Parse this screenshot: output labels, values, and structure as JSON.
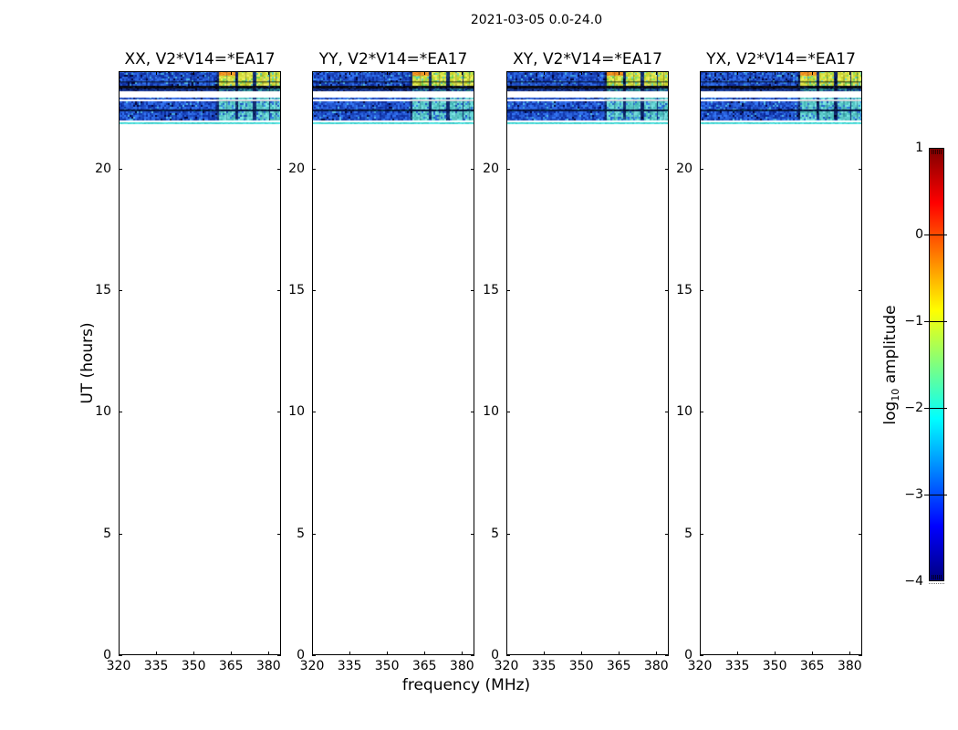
{
  "chart_data": {
    "type": "heatmap",
    "title": "2021-03-05 0.0-24.0",
    "xlabel": "frequency (MHz)",
    "ylabel": "UT (hours)",
    "xlim": [
      320,
      385
    ],
    "ylim": [
      0,
      24
    ],
    "xticks": [
      "320",
      "335",
      "350",
      "365",
      "380"
    ],
    "xtick_values": [
      320,
      335,
      350,
      365,
      380
    ],
    "yticks": [
      "0",
      "5",
      "10",
      "15",
      "20"
    ],
    "ytick_values": [
      0,
      5,
      10,
      15,
      20
    ],
    "panels": [
      {
        "label": "XX, V2*V14=*EA17",
        "seed": 11
      },
      {
        "label": "YY, V2*V14=*EA17",
        "seed": 23
      },
      {
        "label": "XY, V2*V14=*EA17",
        "seed": 37
      },
      {
        "label": "YX, V2*V14=*EA17",
        "seed": 53
      }
    ],
    "colorbar": {
      "label": "log10 amplitude",
      "label_prefix": "log",
      "label_sub": "10",
      "label_suffix": " amplitude",
      "vmin": -4,
      "vmax": 1,
      "tick_values": [
        1,
        0,
        -1,
        -2,
        -3,
        -4
      ],
      "tick_labels": [
        "1",
        "0",
        "−1",
        "−2",
        "−3",
        "−4"
      ],
      "colormap": "jet",
      "colormap_colors": [
        "#7f0000",
        "#ff0000",
        "#ff7f00",
        "#ffff00",
        "#7fff7f",
        "#00ffff",
        "#007fff",
        "#0000ff",
        "#00007f"
      ]
    },
    "rfi_blocks_mhz": [
      [
        360.0,
        366.3
      ],
      [
        368.0,
        373.6
      ],
      [
        375.0,
        380.0
      ],
      [
        380.8,
        384.8
      ]
    ],
    "bands": [
      {
        "name": "scan-top-main",
        "ut_lo": 23.4,
        "ut_hi": 24.0,
        "kind": "blue",
        "blocks": "yellow",
        "first_block_orange": true,
        "hline": true
      },
      {
        "name": "flagged-black",
        "ut_lo": 23.29,
        "ut_hi": 23.4,
        "kind": "black",
        "blocks": "none"
      },
      {
        "name": "dim-row",
        "ut_lo": 23.18,
        "ut_hi": 23.29,
        "kind": "dim",
        "blocks": "faint"
      },
      {
        "name": "thin-row",
        "ut_lo": 22.84,
        "ut_hi": 22.91,
        "kind": "blue",
        "blocks": "cyan"
      },
      {
        "name": "mid-row-a",
        "ut_lo": 22.41,
        "ut_hi": 22.78,
        "kind": "blue",
        "blocks": "cyan"
      },
      {
        "name": "dark-separator",
        "ut_lo": 22.35,
        "ut_hi": 22.41,
        "kind": "darkline",
        "blocks": "none"
      },
      {
        "name": "mid-row-b",
        "ut_lo": 22.01,
        "ut_hi": 22.35,
        "kind": "blue",
        "blocks": "cyan"
      },
      {
        "name": "cyan-strip",
        "ut_lo": 21.83,
        "ut_hi": 21.9,
        "kind": "cyanline",
        "blocks": "none"
      }
    ]
  }
}
